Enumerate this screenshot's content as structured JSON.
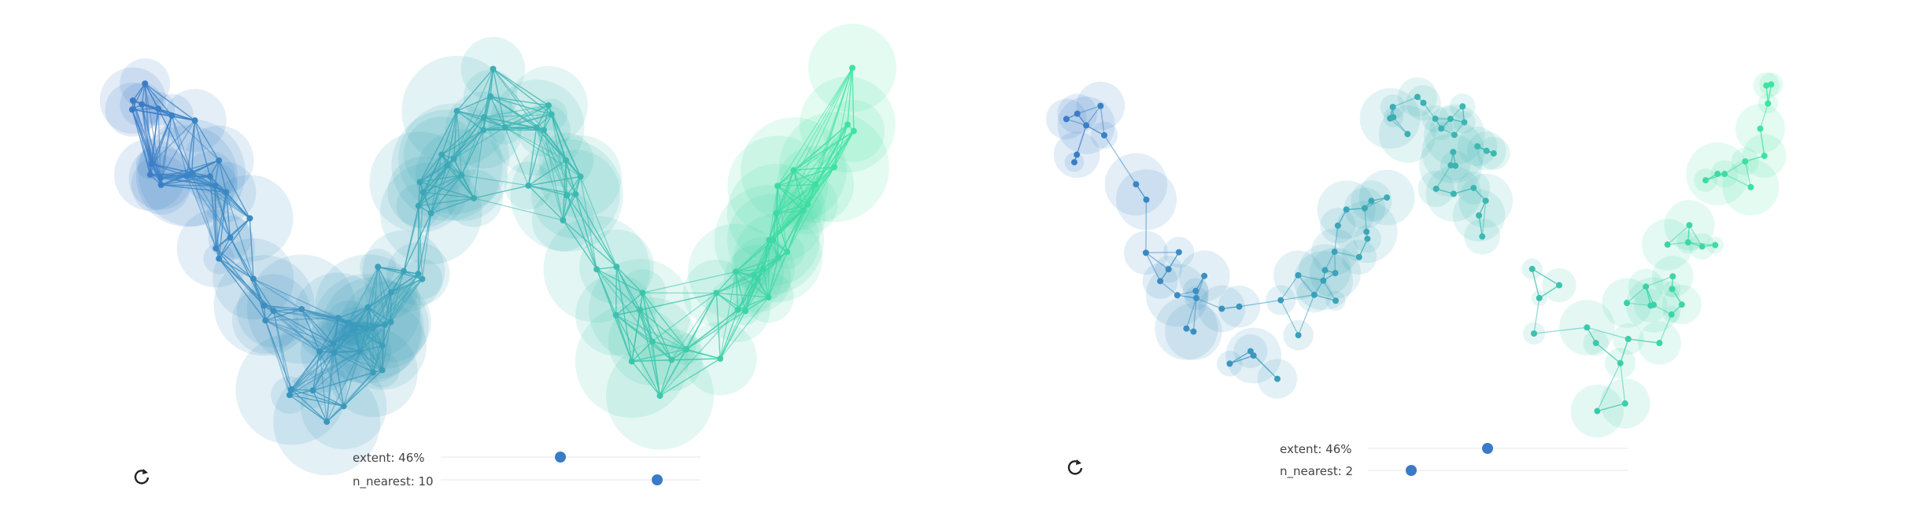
{
  "panels": [
    {
      "id": "left",
      "controls": {
        "extent_label": "extent: 46%",
        "extent_value": 0.46,
        "n_nearest_label": "n_nearest: 10",
        "n_nearest_value": 10,
        "n_nearest_max": 12
      },
      "colors": {
        "start": "#3a7bc8",
        "end": "#3ee6a0",
        "halo": "#b9ecff"
      }
    },
    {
      "id": "right",
      "controls": {
        "extent_label": "extent: 46%",
        "extent_value": 0.46,
        "n_nearest_label": "n_nearest: 2",
        "n_nearest_value": 2,
        "n_nearest_max": 12
      },
      "colors": {
        "start": "#3a7bc8",
        "end": "#3ee6a0",
        "halo": "#b9ecff"
      }
    }
  ],
  "icons": {
    "reset": "reset-icon"
  }
}
